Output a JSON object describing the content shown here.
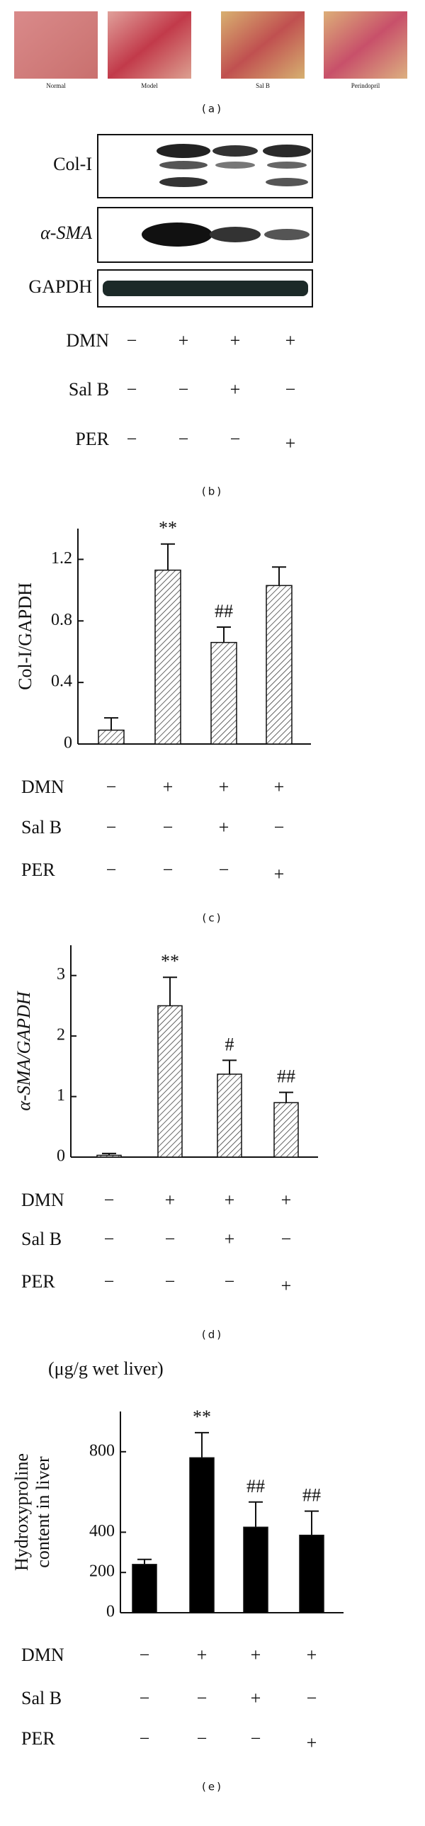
{
  "panel_a": {
    "images": [
      "Normal",
      "Model",
      "Sal B",
      "Perindopril"
    ],
    "label": "(a)"
  },
  "panel_b": {
    "blots": [
      "Col-I",
      "α-SMA",
      "GAPDH"
    ],
    "treatments": [
      {
        "name": "DMN",
        "signs": [
          "−",
          "+",
          "+",
          "+"
        ]
      },
      {
        "name": "Sal B",
        "signs": [
          "−",
          "−",
          "+",
          "−"
        ]
      },
      {
        "name": "PER",
        "signs": [
          "−",
          "−",
          "−",
          "+"
        ]
      }
    ],
    "label": "(b)"
  },
  "chart_data": [
    {
      "type": "bar",
      "ylabel": [
        "Col-I/GAPDH"
      ],
      "values": [
        0.09,
        1.13,
        0.66,
        1.03
      ],
      "errors": [
        0.08,
        0.17,
        0.1,
        0.12
      ],
      "annotations": [
        null,
        "**",
        "##",
        null
      ],
      "ylim": [
        0,
        1.4
      ],
      "yticks": [
        0,
        0.4,
        0.8,
        1.2
      ],
      "color": "#ffffff",
      "hatch": true,
      "treatments": [
        {
          "name": "DMN",
          "signs": [
            "−",
            "+",
            "+",
            "+"
          ]
        },
        {
          "name": "Sal B",
          "signs": [
            "−",
            "−",
            "+",
            "−"
          ]
        },
        {
          "name": "PER",
          "signs": [
            "−",
            "−",
            "−",
            "+"
          ]
        }
      ],
      "label": "(c)"
    },
    {
      "type": "bar",
      "ylabel": [
        "α-SMA/GAPDH"
      ],
      "values": [
        0.03,
        2.5,
        1.37,
        0.9
      ],
      "errors": [
        0.03,
        0.47,
        0.23,
        0.17
      ],
      "annotations": [
        null,
        "**",
        "#",
        "##"
      ],
      "ylim": [
        0,
        3.5
      ],
      "yticks": [
        0,
        1,
        2,
        3
      ],
      "color": "#ffffff",
      "hatch": true,
      "treatments": [
        {
          "name": "DMN",
          "signs": [
            "−",
            "+",
            "+",
            "+"
          ]
        },
        {
          "name": "Sal B",
          "signs": [
            "−",
            "−",
            "+",
            "−"
          ]
        },
        {
          "name": "PER",
          "signs": [
            "−",
            "−",
            "−",
            "+"
          ]
        }
      ],
      "label": "(d)"
    },
    {
      "type": "bar",
      "unit": "(μg/g wet liver)",
      "ylabel": [
        "Hydroxyproline",
        "content in liver"
      ],
      "values": [
        240,
        770,
        425,
        385
      ],
      "errors": [
        25,
        125,
        125,
        120
      ],
      "annotations": [
        null,
        "**",
        "##",
        "##"
      ],
      "ylim": [
        0,
        1000
      ],
      "yticks": [
        0,
        200,
        400,
        800
      ],
      "color": "#000000",
      "hatch": false,
      "treatments": [
        {
          "name": "DMN",
          "signs": [
            "−",
            "+",
            "+",
            "+"
          ]
        },
        {
          "name": "Sal B",
          "signs": [
            "−",
            "−",
            "+",
            "−"
          ]
        },
        {
          "name": "PER",
          "signs": [
            "−",
            "−",
            "−",
            "+"
          ]
        }
      ],
      "label": "(e)"
    }
  ]
}
